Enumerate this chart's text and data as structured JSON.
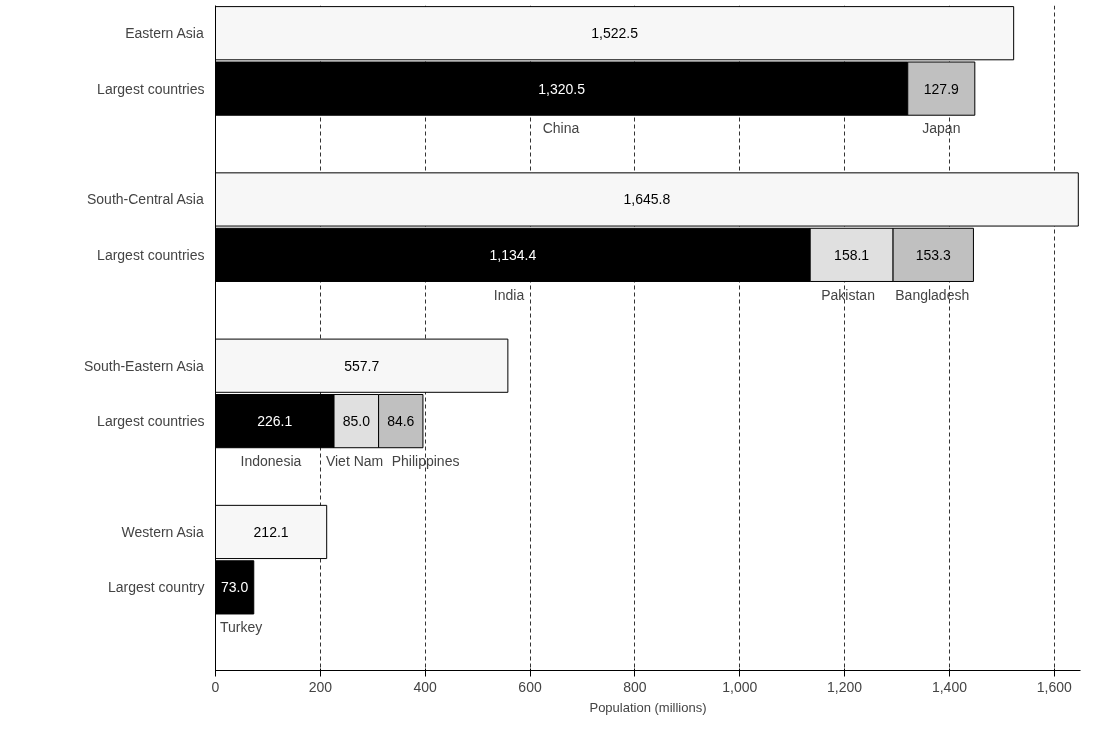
{
  "chart_data": {
    "type": "bar",
    "orientation": "horizontal",
    "stacked": true,
    "categories": [
      "Eastern Asia",
      "Largest countries",
      null,
      "South-Central Asia",
      "Largest countries",
      null,
      "South-Eastern Asia",
      "Largest countries",
      null,
      "Western Asia",
      "Largest country",
      null
    ],
    "series": [
      {
        "color": "#f7f7f7",
        "values": [
          1522.5,
          null,
          null,
          1645.8,
          null,
          null,
          557.7,
          null,
          null,
          212.1,
          null,
          null
        ],
        "value_labels": [
          "1,522.5",
          null,
          null,
          "1,645.8",
          null,
          null,
          "557.7",
          null,
          null,
          "212.1",
          null,
          null
        ]
      },
      {
        "color": "#000000",
        "values": [
          null,
          1320.5,
          null,
          null,
          1134.4,
          null,
          null,
          226.1,
          null,
          null,
          73.0,
          null
        ],
        "value_labels": [
          null,
          "1,320.5",
          null,
          null,
          "1,134.4",
          null,
          null,
          "226.1",
          null,
          null,
          "73.0",
          null
        ]
      },
      {
        "color": "#e0e0e0",
        "values": [
          null,
          null,
          null,
          null,
          158.1,
          null,
          null,
          85.0,
          null,
          null,
          null,
          null
        ],
        "value_labels": [
          null,
          null,
          null,
          null,
          "158.1",
          null,
          null,
          "85.0",
          null,
          null,
          null,
          null
        ]
      },
      {
        "color": "#c0c0c0",
        "values": [
          null,
          127.9,
          null,
          null,
          153.3,
          null,
          null,
          84.6,
          null,
          null,
          null,
          null
        ],
        "value_labels": [
          null,
          "127.9",
          null,
          null,
          "153.3",
          null,
          null,
          "84.6",
          null,
          null,
          null,
          null
        ]
      }
    ],
    "annotations": [
      "China",
      "Japan",
      "India",
      "Pakistan",
      "Bangladesh",
      "Indonesia",
      "Viet Nam",
      "Philippines",
      "Turkey"
    ],
    "xlabel": "Population (millions)",
    "xlim": [
      0,
      1650
    ],
    "xticks": [
      0,
      200,
      400,
      600,
      800,
      {
        "value": 1000,
        "label": "1,000"
      },
      {
        "value": 1200,
        "label": "1,200"
      },
      {
        "value": 1400,
        "label": "1,400"
      },
      {
        "value": 1600,
        "label": "1,600"
      }
    ],
    "grid": "x"
  }
}
